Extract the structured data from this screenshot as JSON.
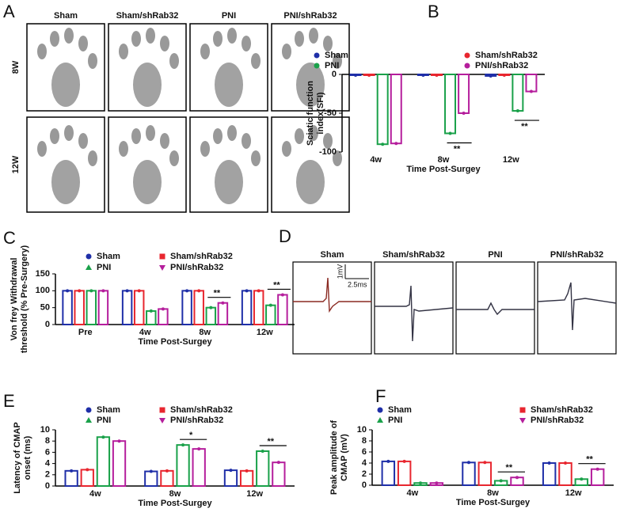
{
  "footprints": {
    "panel": "A",
    "columns": [
      "Sham",
      "Sham/shRab32",
      "PNI",
      "PNI/shRab32"
    ],
    "rows": [
      "8W",
      "12W"
    ]
  },
  "traces": {
    "panel": "D",
    "titles": [
      "Sham",
      "Sham/shRab32",
      "PNI",
      "PNI/shRab32"
    ],
    "scale_y": "1mV",
    "scale_x": "2.5ms"
  },
  "chart_data": [
    {
      "panel": "B",
      "type": "bar",
      "ylabel": [
        "Sciatic function",
        "index(SFI)"
      ],
      "xlabel": "Time Post-Surgey",
      "categories": [
        "4w",
        "8w",
        "12w"
      ],
      "series": [
        {
          "name": "Sham",
          "color": "#1f2fa8",
          "marker": "circle",
          "values": [
            -1,
            -1,
            -2
          ]
        },
        {
          "name": "Sham/shRab32",
          "color": "#e8262f",
          "marker": "circle",
          "values": [
            -1,
            -1,
            -1
          ]
        },
        {
          "name": "PNI",
          "color": "#1aa14a",
          "marker": "circle",
          "values": [
            -90,
            -76,
            -47
          ]
        },
        {
          "name": "PNI/shRab32",
          "color": "#b51e9c",
          "marker": "circle",
          "values": [
            -89,
            -50,
            -22
          ]
        }
      ],
      "ylim": [
        -100,
        0
      ],
      "yticks": [
        0,
        -50,
        -100
      ],
      "annotations": [
        {
          "text": "**",
          "category": "8w"
        },
        {
          "text": "**",
          "category": "12w"
        }
      ]
    },
    {
      "panel": "C",
      "type": "bar",
      "ylabel": [
        "Von frey Withdrawal",
        "threshold (% Pre-Surgery)"
      ],
      "xlabel": "Time Post-Surgey",
      "categories": [
        "Pre",
        "4w",
        "8w",
        "12w"
      ],
      "series": [
        {
          "name": "Sham",
          "color": "#1f2fa8",
          "marker": "circle",
          "values": [
            100,
            100,
            100,
            100
          ]
        },
        {
          "name": "Sham/shRab32",
          "color": "#e8262f",
          "marker": "square",
          "values": [
            100,
            100,
            100,
            100
          ]
        },
        {
          "name": "PNI",
          "color": "#1aa14a",
          "marker": "triangle",
          "values": [
            100,
            40,
            50,
            57
          ]
        },
        {
          "name": "PNI/shRab32",
          "color": "#b51e9c",
          "marker": "triangle-down",
          "values": [
            100,
            46,
            64,
            88
          ]
        }
      ],
      "ylim": [
        0,
        150
      ],
      "yticks": [
        0,
        50,
        100,
        150
      ],
      "annotations": [
        {
          "text": "**",
          "category": "8w"
        },
        {
          "text": "**",
          "category": "12w"
        }
      ]
    },
    {
      "panel": "E",
      "type": "bar",
      "ylabel": [
        "Latency of CMAP",
        "onset (ms)"
      ],
      "xlabel": "Time Post-Surgey",
      "categories": [
        "4w",
        "8w",
        "12w"
      ],
      "series": [
        {
          "name": "Sham",
          "color": "#1f2fa8",
          "marker": "circle",
          "values": [
            2.7,
            2.6,
            2.8
          ]
        },
        {
          "name": "Sham/shRab32",
          "color": "#e8262f",
          "marker": "square",
          "values": [
            2.9,
            2.7,
            2.7
          ]
        },
        {
          "name": "PNI",
          "color": "#1aa14a",
          "marker": "triangle",
          "values": [
            8.7,
            7.3,
            6.2
          ]
        },
        {
          "name": "PNI/shRab32",
          "color": "#b51e9c",
          "marker": "triangle-down",
          "values": [
            8.0,
            6.6,
            4.2
          ]
        }
      ],
      "ylim": [
        0,
        10
      ],
      "yticks": [
        0,
        2,
        4,
        6,
        8,
        10
      ],
      "annotations": [
        {
          "text": "*",
          "category": "8w"
        },
        {
          "text": "**",
          "category": "12w"
        }
      ]
    },
    {
      "panel": "F",
      "type": "bar",
      "ylabel": [
        "Peak amplitude of",
        "CMAP (mV)"
      ],
      "xlabel": "Time Post-Surgey",
      "categories": [
        "4w",
        "8w",
        "12w"
      ],
      "series": [
        {
          "name": "Sham",
          "color": "#1f2fa8",
          "marker": "circle",
          "values": [
            4.3,
            4.1,
            4.0
          ]
        },
        {
          "name": "Sham/shRab32",
          "color": "#e8262f",
          "marker": "square",
          "values": [
            4.3,
            4.1,
            4.0
          ]
        },
        {
          "name": "PNI",
          "color": "#1aa14a",
          "marker": "triangle",
          "values": [
            0.4,
            0.8,
            1.1
          ]
        },
        {
          "name": "PNI/shRab32",
          "color": "#b51e9c",
          "marker": "triangle-down",
          "values": [
            0.4,
            1.4,
            2.9
          ]
        }
      ],
      "ylim": [
        0,
        10
      ],
      "yticks": [
        0,
        2,
        4,
        6,
        8,
        10
      ],
      "annotations": [
        {
          "text": "**",
          "category": "8w"
        },
        {
          "text": "**",
          "category": "12w"
        }
      ]
    }
  ]
}
